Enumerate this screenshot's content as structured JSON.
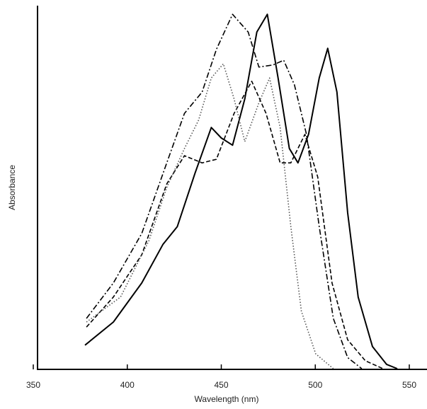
{
  "chart_data": {
    "type": "line",
    "xlabel": "Wavelength (nm)",
    "ylabel": "Absorbance",
    "xlim": [
      350,
      550
    ],
    "xticks": [
      350,
      400,
      450,
      500,
      550
    ],
    "ylim": [
      0,
      1
    ],
    "series": [
      {
        "color": "#000000",
        "dash": "solid",
        "x": [
          377.5,
          392.6,
          407.7,
          419,
          426.6,
          436,
          444.7,
          450,
          456,
          462.5,
          468.9,
          474.5,
          480.2,
          486.2,
          490.8,
          496.4,
          502.1,
          506.6,
          511.5,
          517.2,
          522.8,
          530.4,
          537.9,
          543.6
        ],
        "y": [
          0.065,
          0.129,
          0.237,
          0.344,
          0.393,
          0.54,
          0.667,
          0.638,
          0.618,
          0.746,
          0.931,
          0.98,
          0.804,
          0.609,
          0.569,
          0.648,
          0.804,
          0.886,
          0.765,
          0.432,
          0.198,
          0.061,
          0.012,
          0
        ]
      },
      {
        "color": "#000000",
        "dash": "dashdot",
        "x": [
          378.3,
          392.6,
          407.7,
          421,
          430.4,
          439.8,
          447.4,
          456,
          464.3,
          470,
          477.5,
          483.2,
          488.9,
          495.3,
          502.1,
          509.6,
          517.2,
          524.7
        ],
        "y": [
          0.139,
          0.237,
          0.374,
          0.569,
          0.706,
          0.765,
          0.883,
          0.98,
          0.931,
          0.834,
          0.84,
          0.853,
          0.785,
          0.648,
          0.393,
          0.139,
          0.031,
          0
        ]
      },
      {
        "color": "#000000",
        "dash": "dashed",
        "x": [
          378.3,
          392.6,
          407.7,
          421,
          430.4,
          439.8,
          447.4,
          456.8,
          466.2,
          473.8,
          481.3,
          487,
          494.5,
          501.3,
          508.9,
          517.2,
          526.6,
          536
        ],
        "y": [
          0.115,
          0.198,
          0.315,
          0.511,
          0.589,
          0.569,
          0.579,
          0.706,
          0.795,
          0.706,
          0.569,
          0.569,
          0.648,
          0.53,
          0.237,
          0.08,
          0.022,
          0
        ]
      },
      {
        "color": "#555555",
        "dash": "dotted",
        "x": [
          378.3,
          396.4,
          411.5,
          421,
          430.4,
          437.9,
          444.7,
          451.1,
          456.8,
          462.5,
          470,
          475.7,
          481.3,
          487,
          492.6,
          500.2,
          509.6
        ],
        "y": [
          0.129,
          0.198,
          0.354,
          0.501,
          0.609,
          0.687,
          0.804,
          0.843,
          0.746,
          0.628,
          0.735,
          0.804,
          0.667,
          0.393,
          0.159,
          0.041,
          0
        ]
      }
    ]
  }
}
